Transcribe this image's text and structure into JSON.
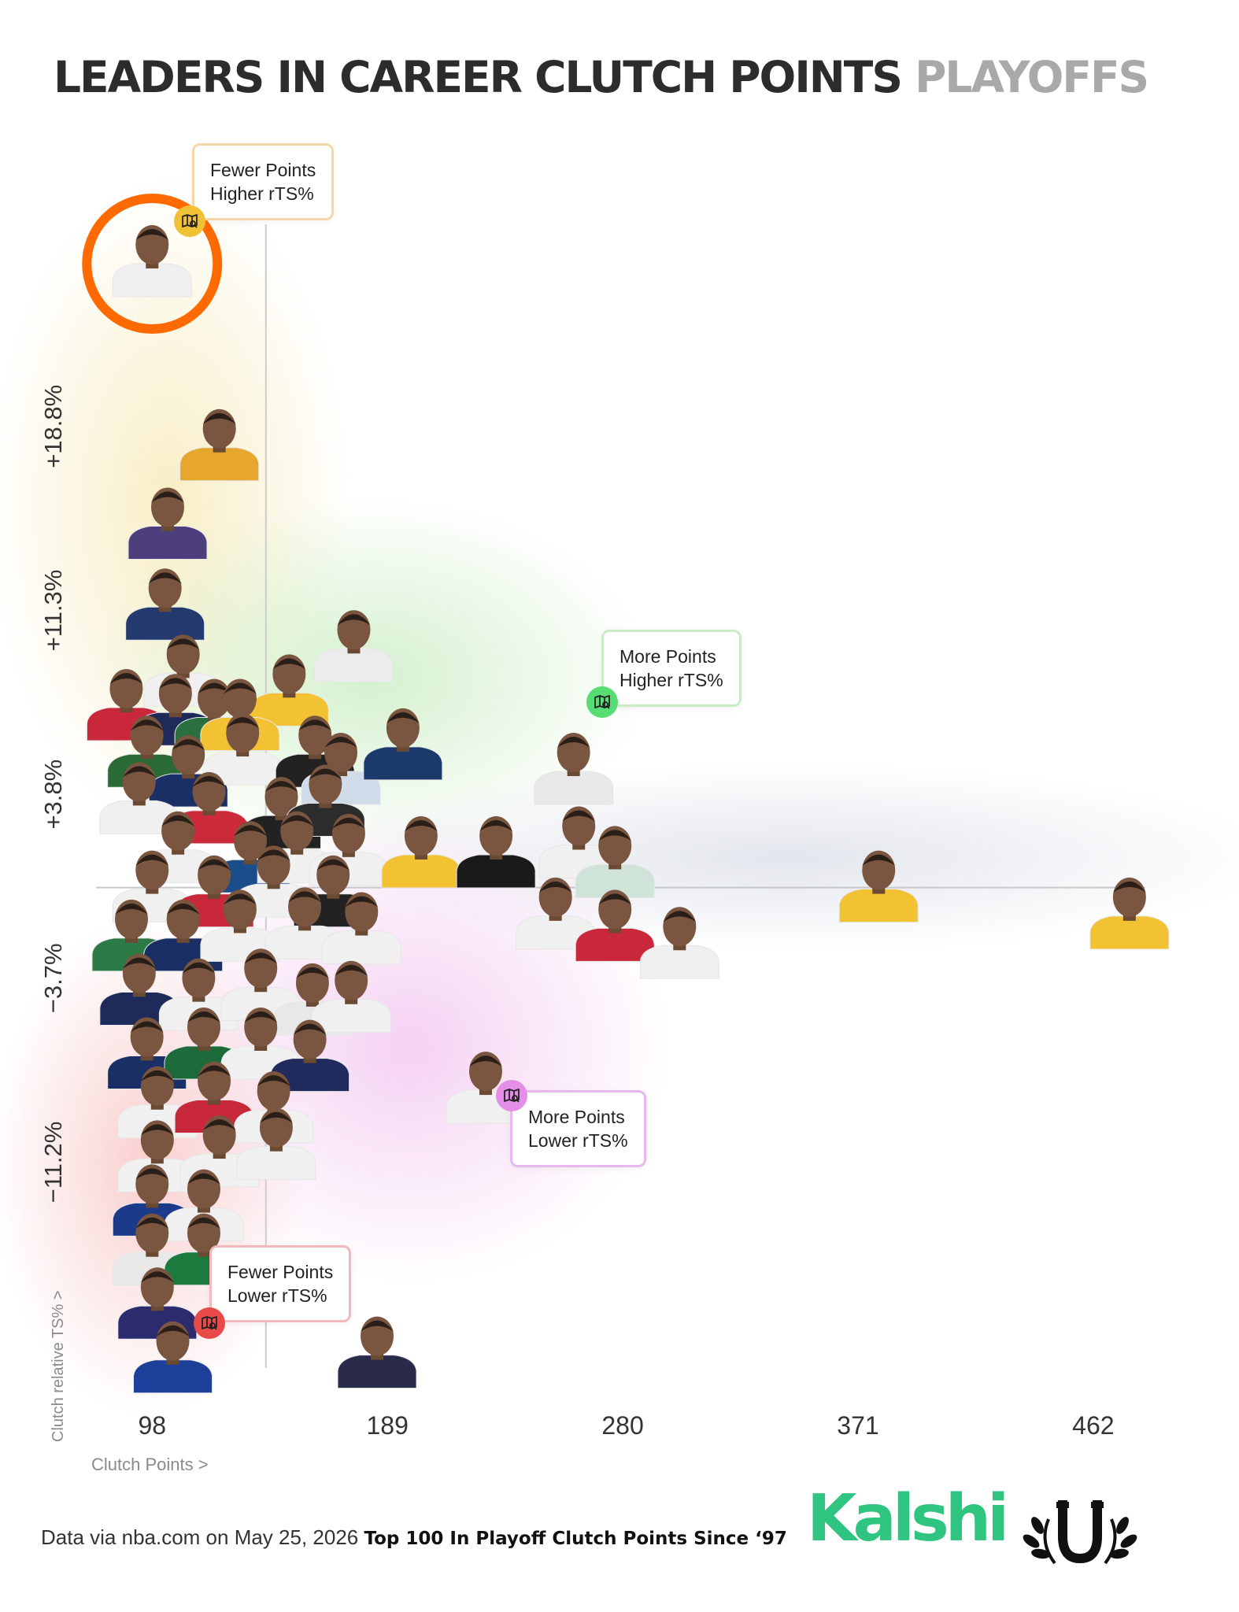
{
  "title": {
    "main": "LEADERS IN CAREER CLUTCH POINTS",
    "sub": "PLAYOFFS"
  },
  "chart_data": {
    "type": "scatter",
    "xlabel": "Clutch Points >",
    "ylabel": "Clutch relative TS% >",
    "x_ticks": [
      98,
      189,
      280,
      371,
      462
    ],
    "y_ticks": [
      "+18.8%",
      "+11.3%",
      "+3.8%",
      "−3.7%",
      "−11.2%"
    ],
    "y_tick_values": [
      18.8,
      11.3,
      3.8,
      -3.7,
      -11.2
    ],
    "xlim": [
      76,
      480
    ],
    "ylim": [
      -18.5,
      29
    ],
    "x_divider": 142,
    "y_divider": 0,
    "grid": false,
    "points": [
      {
        "x": 98,
        "y": 25.5,
        "jersey": "#f0f0f0",
        "circled": true
      },
      {
        "x": 124,
        "y": 18.0,
        "jersey": "#e7a72d"
      },
      {
        "x": 104,
        "y": 14.8,
        "jersey": "#4c3f7c"
      },
      {
        "x": 103,
        "y": 11.5,
        "jersey": "#243a6e"
      },
      {
        "x": 110,
        "y": 8.8,
        "jersey": "#f0f0f0"
      },
      {
        "x": 88,
        "y": 7.4,
        "jersey": "#c8283a"
      },
      {
        "x": 107,
        "y": 7.2,
        "jersey": "#1d2a5a"
      },
      {
        "x": 122,
        "y": 7.0,
        "jersey": "#2b6f3e"
      },
      {
        "x": 151,
        "y": 8.0,
        "jersey": "#f2c232"
      },
      {
        "x": 176,
        "y": 9.8,
        "jersey": "#ececec"
      },
      {
        "x": 132,
        "y": 7.0,
        "jersey": "#f2c232"
      },
      {
        "x": 96,
        "y": 5.5,
        "jersey": "#2a6a35"
      },
      {
        "x": 112,
        "y": 4.7,
        "jersey": "#1a2f66"
      },
      {
        "x": 133,
        "y": 5.6,
        "jersey": "#f0f0f0"
      },
      {
        "x": 161,
        "y": 5.5,
        "jersey": "#222222"
      },
      {
        "x": 171,
        "y": 4.8,
        "jersey": "#cfdbe8"
      },
      {
        "x": 195,
        "y": 5.8,
        "jersey": "#1b3a6b"
      },
      {
        "x": 93,
        "y": 3.6,
        "jersey": "#f0f0f0"
      },
      {
        "x": 120,
        "y": 3.2,
        "jersey": "#cc2a3a"
      },
      {
        "x": 148,
        "y": 3.0,
        "jersey": "#222222"
      },
      {
        "x": 165,
        "y": 3.5,
        "jersey": "#2c2c2c"
      },
      {
        "x": 261,
        "y": 4.8,
        "jersey": "#e8e8e8"
      },
      {
        "x": 108,
        "y": 1.6,
        "jersey": "#f0f0f0"
      },
      {
        "x": 136,
        "y": 1.2,
        "jersey": "#1b4d8a"
      },
      {
        "x": 154,
        "y": 1.6,
        "jersey": "#f0f0f0"
      },
      {
        "x": 174,
        "y": 1.5,
        "jersey": "#f0f0f0"
      },
      {
        "x": 202,
        "y": 1.4,
        "jersey": "#f2c232"
      },
      {
        "x": 231,
        "y": 1.4,
        "jersey": "#1a1a1a"
      },
      {
        "x": 263,
        "y": 1.8,
        "jersey": "#f0f0f0"
      },
      {
        "x": 277,
        "y": 1.0,
        "jersey": "#cfe3d8"
      },
      {
        "x": 98,
        "y": 0.0,
        "jersey": "#f0f0f0"
      },
      {
        "x": 122,
        "y": -0.2,
        "jersey": "#c8283a"
      },
      {
        "x": 145,
        "y": 0.2,
        "jersey": "#f0f0f0"
      },
      {
        "x": 168,
        "y": -0.2,
        "jersey": "#222222"
      },
      {
        "x": 90,
        "y": -2.0,
        "jersey": "#2c7a46"
      },
      {
        "x": 110,
        "y": -2.0,
        "jersey": "#1a2f66"
      },
      {
        "x": 132,
        "y": -1.6,
        "jersey": "#f0f0f0"
      },
      {
        "x": 157,
        "y": -1.5,
        "jersey": "#f0f0f0"
      },
      {
        "x": 179,
        "y": -1.7,
        "jersey": "#f0f0f0"
      },
      {
        "x": 254,
        "y": -1.1,
        "jersey": "#f0f0f0"
      },
      {
        "x": 277,
        "y": -1.6,
        "jersey": "#c8283a"
      },
      {
        "x": 302,
        "y": -2.3,
        "jersey": "#f0f0f0"
      },
      {
        "x": 379,
        "y": 0.0,
        "jersey": "#f2c232"
      },
      {
        "x": 476,
        "y": -1.1,
        "jersey": "#f2c232"
      },
      {
        "x": 93,
        "y": -4.2,
        "jersey": "#1d2a5a"
      },
      {
        "x": 116,
        "y": -4.4,
        "jersey": "#f0f0f0"
      },
      {
        "x": 140,
        "y": -4.0,
        "jersey": "#f0f0f0"
      },
      {
        "x": 160,
        "y": -4.6,
        "jersey": "#e8e8e8"
      },
      {
        "x": 175,
        "y": -4.5,
        "jersey": "#f0f0f0"
      },
      {
        "x": 96,
        "y": -6.8,
        "jersey": "#1a2f66"
      },
      {
        "x": 118,
        "y": -6.4,
        "jersey": "#1d6a3a"
      },
      {
        "x": 140,
        "y": -6.4,
        "jersey": "#f0f0f0"
      },
      {
        "x": 159,
        "y": -6.9,
        "jersey": "#202a5c"
      },
      {
        "x": 227,
        "y": -8.2,
        "jersey": "#f0f0f0"
      },
      {
        "x": 100,
        "y": -8.8,
        "jersey": "#f0f0f0"
      },
      {
        "x": 122,
        "y": -8.6,
        "jersey": "#c8283a"
      },
      {
        "x": 145,
        "y": -9.0,
        "jersey": "#f0f0f0"
      },
      {
        "x": 100,
        "y": -11.0,
        "jersey": "#f0f0f0"
      },
      {
        "x": 124,
        "y": -10.8,
        "jersey": "#f0f0f0"
      },
      {
        "x": 146,
        "y": -10.5,
        "jersey": "#f0f0f0"
      },
      {
        "x": 98,
        "y": -12.8,
        "jersey": "#1b3a8a"
      },
      {
        "x": 118,
        "y": -13.0,
        "jersey": "#f0f0f0"
      },
      {
        "x": 98,
        "y": -14.8,
        "jersey": "#e8e8e8"
      },
      {
        "x": 118,
        "y": -14.8,
        "jersey": "#1d7a3e"
      },
      {
        "x": 100,
        "y": -17.0,
        "jersey": "#2b2b6e"
      },
      {
        "x": 106,
        "y": -19.2,
        "jersey": "#1d3f9a"
      },
      {
        "x": 185,
        "y": -19.0,
        "jersey": "#2a2a4a"
      }
    ]
  },
  "quadrants": {
    "top_left": {
      "line1": "Fewer Points",
      "line2": "Higher rTS%",
      "color": "#f3d7a8",
      "icon_color": "#f0c035"
    },
    "top_right": {
      "line1": "More Points",
      "line2": "Higher rTS%",
      "color": "#c8ecc4",
      "icon_color": "#57dd73"
    },
    "bottom_right": {
      "line1": "More Points",
      "line2": "Lower rTS%",
      "color": "#e7b8ec",
      "icon_color": "#e58ee8"
    },
    "bottom_left": {
      "line1": "Fewer Points",
      "line2": "Lower rTS%",
      "color": "#f2b8bc",
      "icon_color": "#e84a4a"
    }
  },
  "highlight": {
    "color": "#ff6a00"
  },
  "footer": {
    "source": "Data via nba.com on May 25, 2026",
    "description": "Top 100 In Playoff Clutch Points Since ‘97",
    "brand": "Kalshi",
    "brand_color": "#2fc47f"
  }
}
